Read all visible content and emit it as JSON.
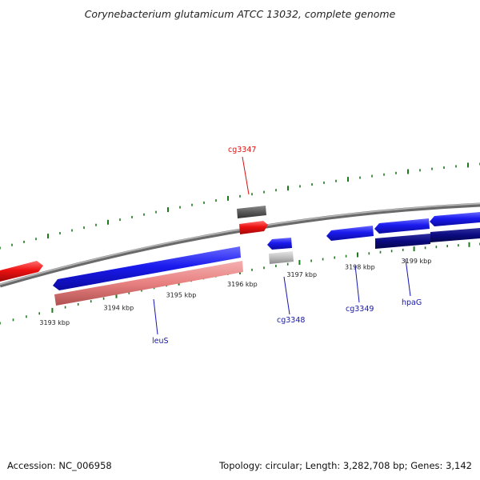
{
  "title": "Corynebacterium glutamicum ATCC 13032, complete genome",
  "footer": {
    "accession": "Accession: NC_006958",
    "stats": "Topology: circular; Length: 3,282,708 bp; Genes: 3,142"
  },
  "colors": {
    "backbone": "#8a8a8a",
    "tick": "#1d7a1d",
    "forward_gene": "#1a1aee",
    "reverse_gene": "#ee1111",
    "forward_feature": "#0a0a80",
    "reverse_feature": "#e88080",
    "gray_feature": "#5a5a5a",
    "light_gray_feature": "#bdbdbd",
    "label_blue": "#1515b0",
    "label_red": "#dd1111"
  },
  "ticks": [
    "3193 kbp",
    "3194 kbp",
    "3195 kbp",
    "3196 kbp",
    "3197 kbp",
    "3198 kbp",
    "3199 kbp"
  ],
  "gene_labels": [
    {
      "name": "cg3347",
      "color": "red"
    },
    {
      "name": "leuS",
      "color": "blue"
    },
    {
      "name": "cg3348",
      "color": "blue"
    },
    {
      "name": "cg3349",
      "color": "blue"
    },
    {
      "name": "hpaG",
      "color": "blue"
    }
  ]
}
